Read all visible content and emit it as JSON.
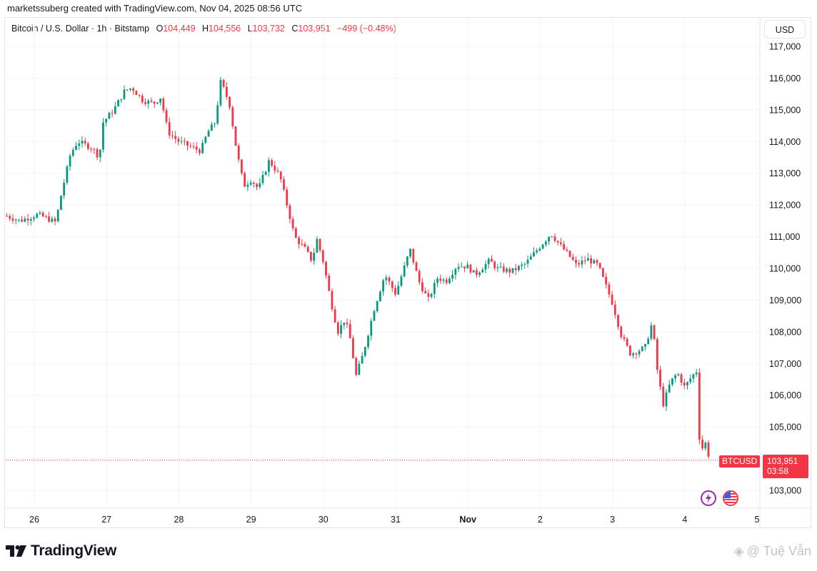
{
  "header": {
    "text": "marketssuberg created with TradingView.com, Nov 04, 2025 08:56 UTC"
  },
  "legend": {
    "symbol": "Bitcoin / U.S. Dollar · 1h · Bitstamp",
    "o_label": "O",
    "o_value": "104,449",
    "h_label": "H",
    "h_value": "104,556",
    "l_label": "L",
    "l_value": "103,732",
    "c_label": "C",
    "c_value": "103,951",
    "change": "−499 (−0.48%)"
  },
  "currency_button": "USD",
  "price_tag": {
    "symbol": "BTCUSD",
    "price": "103,951",
    "countdown": "03:58"
  },
  "footer": {
    "logo_text": "TradingView",
    "watermark": "@ Tuệ Vẫn"
  },
  "colors": {
    "up": "#089981",
    "down": "#f23645",
    "grid": "#f0f3fa",
    "text": "#131722"
  },
  "icons": [
    "tradingview-logo-icon",
    "lightning-icon",
    "us-flag-icon"
  ],
  "chart_data": {
    "type": "candlestick",
    "title": "Bitcoin / U.S. Dollar · 1h · Bitstamp",
    "ylim": [
      102500,
      117500
    ],
    "y_ticks": [
      "117,000",
      "116,000",
      "115,000",
      "114,000",
      "113,000",
      "112,000",
      "111,000",
      "110,000",
      "109,000",
      "108,000",
      "107,000",
      "106,000",
      "105,000",
      "104,000",
      "103,000"
    ],
    "y_tick_values": [
      117000,
      116000,
      115000,
      114000,
      113000,
      112000,
      111000,
      110000,
      109000,
      108000,
      107000,
      106000,
      105000,
      104000,
      103000
    ],
    "x_ticks": [
      "26",
      "27",
      "28",
      "29",
      "30",
      "31",
      "Nov",
      "2",
      "3",
      "4",
      "5"
    ],
    "x_tick_days": [
      0,
      1,
      2,
      3,
      4,
      5,
      6,
      7,
      8,
      9,
      10
    ],
    "x_start_day": -0.4,
    "x_end_day": 10,
    "last_price": 103951,
    "series_anchors_day_price": [
      [
        -0.38,
        111650
      ],
      [
        -0.2,
        111500
      ],
      [
        0.05,
        111700
      ],
      [
        0.3,
        111450
      ],
      [
        0.35,
        112100
      ],
      [
        0.5,
        113600
      ],
      [
        0.6,
        114000
      ],
      [
        0.8,
        113800
      ],
      [
        0.9,
        113500
      ],
      [
        0.95,
        114600
      ],
      [
        1.1,
        115000
      ],
      [
        1.25,
        115600
      ],
      [
        1.35,
        115700
      ],
      [
        1.5,
        115300
      ],
      [
        1.65,
        115200
      ],
      [
        1.75,
        115400
      ],
      [
        1.85,
        114300
      ],
      [
        2.0,
        114000
      ],
      [
        2.1,
        113900
      ],
      [
        2.3,
        113700
      ],
      [
        2.4,
        114300
      ],
      [
        2.5,
        114600
      ],
      [
        2.58,
        115900
      ],
      [
        2.7,
        115200
      ],
      [
        2.8,
        113700
      ],
      [
        2.9,
        112600
      ],
      [
        3.0,
        112800
      ],
      [
        3.1,
        112500
      ],
      [
        3.25,
        113400
      ],
      [
        3.4,
        112900
      ],
      [
        3.55,
        111500
      ],
      [
        3.6,
        111000
      ],
      [
        3.75,
        110600
      ],
      [
        3.85,
        110200
      ],
      [
        3.9,
        111000
      ],
      [
        4.0,
        110200
      ],
      [
        4.1,
        109000
      ],
      [
        4.2,
        108000
      ],
      [
        4.3,
        108400
      ],
      [
        4.38,
        107700
      ],
      [
        4.45,
        106600
      ],
      [
        4.55,
        107300
      ],
      [
        4.7,
        108700
      ],
      [
        4.85,
        109800
      ],
      [
        5.0,
        109200
      ],
      [
        5.1,
        109900
      ],
      [
        5.2,
        110600
      ],
      [
        5.32,
        109600
      ],
      [
        5.45,
        109000
      ],
      [
        5.58,
        109700
      ],
      [
        5.7,
        109600
      ],
      [
        5.85,
        110100
      ],
      [
        6.0,
        110050
      ],
      [
        6.1,
        109800
      ],
      [
        6.3,
        110250
      ],
      [
        6.4,
        110000
      ],
      [
        6.6,
        109900
      ],
      [
        6.8,
        110150
      ],
      [
        7.0,
        110700
      ],
      [
        7.15,
        111100
      ],
      [
        7.25,
        110800
      ],
      [
        7.4,
        110400
      ],
      [
        7.5,
        110100
      ],
      [
        7.65,
        110300
      ],
      [
        7.8,
        110100
      ],
      [
        8.0,
        108900
      ],
      [
        8.12,
        107900
      ],
      [
        8.25,
        107300
      ],
      [
        8.45,
        107500
      ],
      [
        8.55,
        108300
      ],
      [
        8.62,
        106800
      ],
      [
        8.7,
        105700
      ],
      [
        8.8,
        106400
      ],
      [
        8.9,
        106700
      ],
      [
        9.0,
        106250
      ],
      [
        9.1,
        106600
      ],
      [
        9.18,
        106800
      ],
      [
        9.2,
        104700
      ],
      [
        9.25,
        104300
      ],
      [
        9.3,
        104550
      ],
      [
        9.34,
        103951
      ]
    ]
  }
}
